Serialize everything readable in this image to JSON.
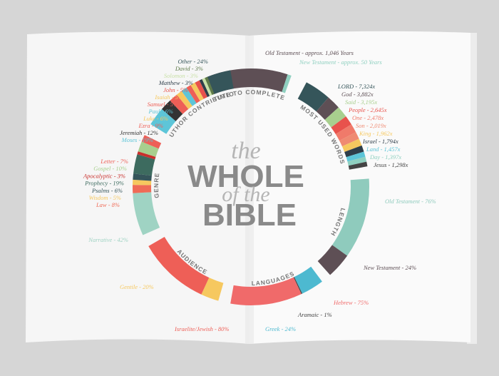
{
  "chart_data": {
    "type": "radial",
    "title": [
      "the",
      "WHOLE",
      "of the",
      "BIBLE"
    ],
    "sections": [
      {
        "name": "TIME TO COMPLETE",
        "labels": [
          "Old Testament - approx. 1,046 Years",
          "New Testament - approx. 50 Years"
        ],
        "values": [
          1046,
          50
        ],
        "colors": [
          "#5e4f55",
          "#8fd0c0"
        ]
      },
      {
        "name": "MOST USED WORDS",
        "labels": [
          "LORD - 7,324x",
          "God - 3,882x",
          "Said - 3,195x",
          "People - 2,645x",
          "One - 2,478x",
          "Son - 2,019x",
          "King - 1,962x",
          "Israel - 1,794x",
          "Land - 1,457x",
          "Day - 1,397x",
          "Jesus - 1,298x"
        ],
        "values": [
          7324,
          3882,
          3195,
          2645,
          2478,
          2019,
          1962,
          1794,
          1457,
          1397,
          1298
        ],
        "colors": [
          "#35555a",
          "#5e4f55",
          "#a8cf8e",
          "#e8524c",
          "#f07a6a",
          "#ef8a72",
          "#f6c85f",
          "#2f3e4a",
          "#5dc5d8",
          "#8fd0c0",
          "#444444"
        ]
      },
      {
        "name": "LENGTH",
        "labels": [
          "Old Testament - 76%",
          "New Testament - 24%"
        ],
        "values": [
          76,
          24
        ],
        "colors": [
          "#8fcbbd",
          "#5e4f55"
        ]
      },
      {
        "name": "LANGUAGES",
        "labels": [
          "Hebrew - 75%",
          "Aramaic - 1%",
          "Greek - 24%"
        ],
        "values": [
          75,
          1,
          24
        ],
        "colors": [
          "#f06a6a",
          "#444444",
          "#4db9d0"
        ]
      },
      {
        "name": "AUDIENCE",
        "labels": [
          "Israelite/Jewish - 80%",
          "Gentile - 20%"
        ],
        "values": [
          80,
          20
        ],
        "colors": [
          "#ee5f57",
          "#f6c85f"
        ]
      },
      {
        "name": "GENRE",
        "labels": [
          "Letter - 7%",
          "Gospel - 10%",
          "Apocalyptic - 3%",
          "Prophecy - 19%",
          "Psalms - 6%",
          "Wisdom - 5%",
          "Law - 8%",
          "Narrative - 42%"
        ],
        "values": [
          7,
          10,
          3,
          19,
          6,
          5,
          8,
          42
        ],
        "colors": [
          "#ee5f57",
          "#a8cf8e",
          "#c9302c",
          "#3d6b5f",
          "#35555a",
          "#f6c85f",
          "#ef6b57",
          "#9fd3c3"
        ]
      },
      {
        "name": "AUTHOR CONTRIBUTION",
        "labels": [
          "Other - 24%",
          "David - 3%",
          "Solomon - 3%",
          "Matthew - 3%",
          "John - 5%",
          "Isaiah - 5%",
          "Samuel - 5%",
          "Paul - 6%",
          "Luke - 6%",
          "Ezra - 9%",
          "Jeremiah - 12%",
          "Moses - 19%"
        ],
        "values": [
          24,
          3,
          3,
          3,
          5,
          5,
          5,
          6,
          6,
          9,
          12,
          19
        ],
        "colors": [
          "#35555a",
          "#5e7a4a",
          "#c9e0a8",
          "#2f3e4a",
          "#e8524c",
          "#f6c85f",
          "#ee5f57",
          "#5dc5d8",
          "#f6c85f",
          "#ee5f57",
          "#333333",
          "#5dc5d8"
        ]
      }
    ]
  }
}
